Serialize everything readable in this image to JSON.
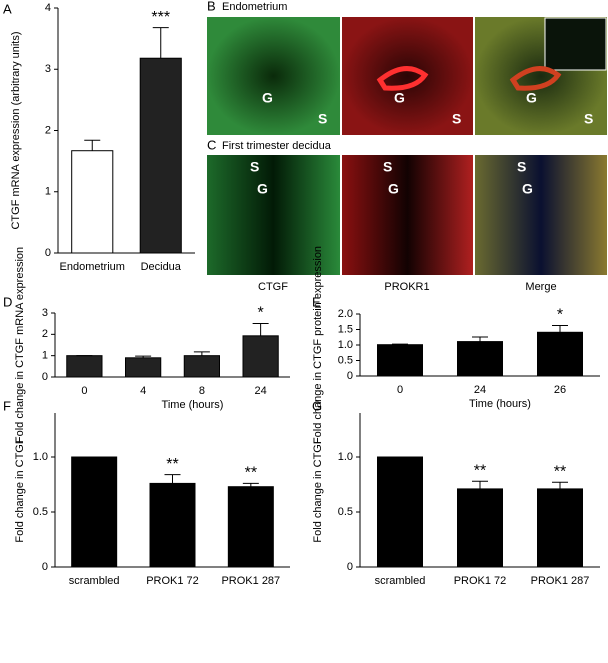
{
  "chart_data": [
    {
      "type": "bar",
      "panel": "A",
      "ylabel": "CTGF mRNA expression (arbitrary units)",
      "categories": [
        "Endometrium",
        "Decidua"
      ],
      "values": [
        1.67,
        3.18
      ],
      "errors": [
        0.17,
        0.5
      ],
      "colors": [
        "#ffffff",
        "#222222"
      ],
      "annotations": [
        null,
        "***"
      ],
      "ylim": [
        0,
        4
      ],
      "yticks": [
        0,
        1,
        2,
        3,
        4
      ]
    },
    {
      "type": "bar",
      "panel": "D",
      "ylabel": "Fold change in CTGF mRNA expression",
      "xlabel": "Time  (hours)",
      "categories": [
        "0",
        "4",
        "8",
        "24"
      ],
      "values": [
        1.0,
        0.9,
        1.0,
        1.93
      ],
      "errors": [
        0,
        0.08,
        0.18,
        0.58
      ],
      "colors": [
        "#222222",
        "#222222",
        "#222222",
        "#222222"
      ],
      "annotations": [
        null,
        null,
        null,
        "*"
      ],
      "ylim": [
        0,
        3
      ],
      "yticks": [
        0,
        1,
        2,
        3
      ]
    },
    {
      "type": "bar",
      "panel": "E",
      "ylabel": "Fold change in CTGF protein expression",
      "xlabel": "Time (hours)",
      "categories": [
        "0",
        "24",
        "26"
      ],
      "values": [
        1.01,
        1.11,
        1.41
      ],
      "errors": [
        0.02,
        0.15,
        0.22
      ],
      "colors": [
        "#000000",
        "#000000",
        "#000000"
      ],
      "annotations": [
        null,
        null,
        "*"
      ],
      "ylim": [
        0,
        2
      ],
      "yticks": [
        0,
        0.5,
        {
          "value": 1,
          "label": "1.0"
        },
        1.5,
        {
          "value": 2,
          "label": "2.0"
        }
      ]
    },
    {
      "type": "bar",
      "panel": "F",
      "ylabel": "Fold change in CTGF",
      "categories": [
        "scrambled",
        "PROK1 72",
        "PROK1 287"
      ],
      "values": [
        1.0,
        0.76,
        0.73
      ],
      "errors": [
        0,
        0.08,
        0.03
      ],
      "colors": [
        "#000000",
        "#000000",
        "#000000"
      ],
      "annotations": [
        null,
        "**",
        "**"
      ],
      "ylim": [
        0,
        1.4
      ],
      "yticks": [
        0,
        0.5,
        {
          "value": 1,
          "label": "1.0"
        }
      ]
    },
    {
      "type": "bar",
      "panel": "G",
      "ylabel": "Fold change in CTGF",
      "categories": [
        "scrambled",
        "PROK1 72",
        "PROK1 287"
      ],
      "values": [
        1.0,
        0.71,
        0.71
      ],
      "errors": [
        0,
        0.07,
        0.06
      ],
      "colors": [
        "#000000",
        "#000000",
        "#000000"
      ],
      "annotations": [
        null,
        "**",
        "**"
      ],
      "ylim": [
        0,
        1.4
      ],
      "yticks": [
        0,
        0.5,
        {
          "value": 1,
          "label": "1.0"
        }
      ]
    }
  ],
  "micrographs": {
    "rows": [
      {
        "panel": "B",
        "title": "Endometrium"
      },
      {
        "panel": "C",
        "title": "First trimester decidua"
      }
    ],
    "columns": [
      "CTGF",
      "PROKR1",
      "Merge"
    ],
    "markers": [
      "G",
      "S"
    ]
  }
}
